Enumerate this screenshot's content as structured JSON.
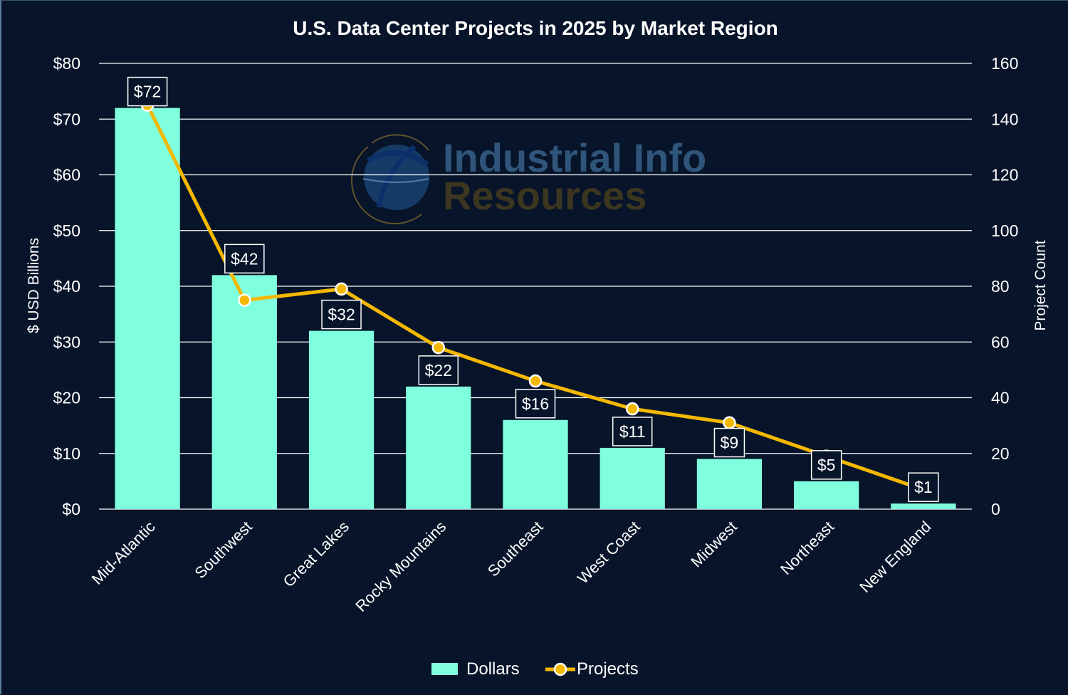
{
  "chart_data": {
    "type": "bar",
    "title": "U.S. Data Center Projects in 2025 by Market Region",
    "xlabel": "",
    "ylabel": "$ USD Billions",
    "y2label": "Project Count",
    "ylim": [
      0,
      80
    ],
    "y2lim": [
      0,
      160
    ],
    "yticks": [
      "$0",
      "$10",
      "$20",
      "$30",
      "$40",
      "$50",
      "$60",
      "$70",
      "$80"
    ],
    "y2ticks": [
      "0",
      "20",
      "40",
      "60",
      "80",
      "100",
      "120",
      "140",
      "160"
    ],
    "grid": true,
    "categories": [
      "Mid-Atlantic",
      "Southwest",
      "Great Lakes",
      "Rocky Mountains",
      "Southeast",
      "West Coast",
      "Midwest",
      "Northeast",
      "New England"
    ],
    "series": [
      {
        "name": "Dollars",
        "type": "bar",
        "axis": "left",
        "color": "#7fffde",
        "values": [
          72,
          42,
          32,
          22,
          16,
          11,
          9,
          5,
          1
        ],
        "labels": [
          "$72",
          "$42",
          "$32",
          "$22",
          "$16",
          "$11",
          "$9",
          "$5",
          "$1"
        ]
      },
      {
        "name": "Projects",
        "type": "line",
        "axis": "right",
        "color": "#f5b800",
        "values": [
          145,
          75,
          79,
          58,
          46,
          36,
          31,
          19,
          7
        ]
      }
    ],
    "legend": {
      "position": "bottom",
      "items": [
        "Dollars",
        "Projects"
      ]
    },
    "watermark": {
      "line1": "Industrial Info",
      "line2": "Resources"
    }
  },
  "colors": {
    "background": "#071429",
    "bar": "#7fffde",
    "line": "#f5b800",
    "grid": "#ffffff"
  }
}
